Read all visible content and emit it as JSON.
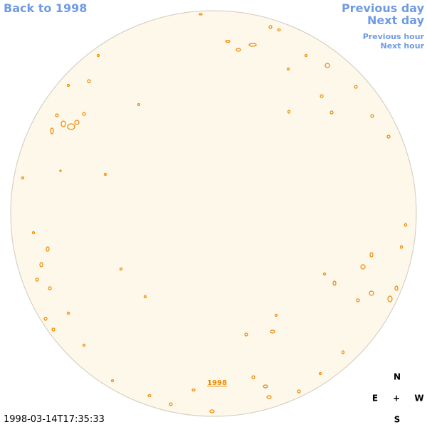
{
  "navigation": {
    "back_year": "Back to 1998",
    "previous_day": "Previous day",
    "next_day": "Next day",
    "previous_hour": "Previous hour",
    "next_hour": "Next hour"
  },
  "image": {
    "year_link": "1998",
    "timestamp": "1998-03-14T17:35:33"
  },
  "compass": {
    "north": "N",
    "east": "E",
    "center": "+",
    "west": "W",
    "south": "S"
  }
}
